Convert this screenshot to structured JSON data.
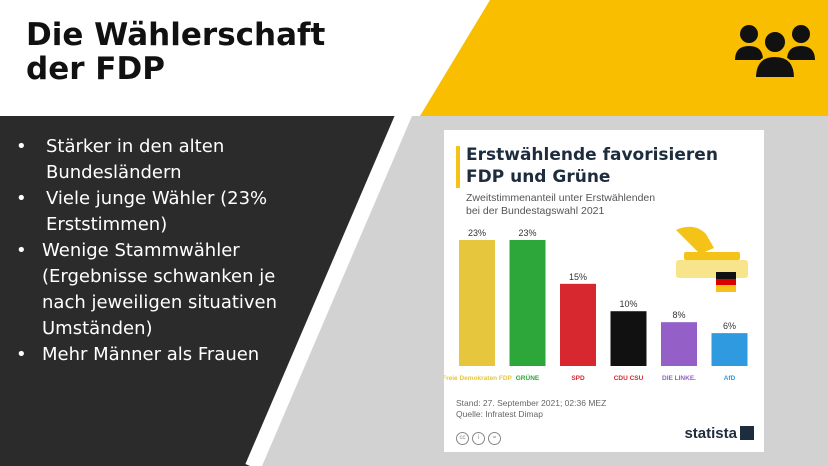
{
  "slide": {
    "title_line1": "Die Wählerschaft",
    "title_line2": "der FDP",
    "bullets": [
      "Stärker in den alten",
      "Bundesländern",
      "Viele junge Wähler (23%",
      "Erststimmen)",
      "Wenige Stammwähler",
      "(Ergebnisse schwanken je",
      "nach jeweiligen situativen",
      "Umständen)",
      "Mehr Männer als Frauen"
    ],
    "icon": "people-group-icon",
    "colors": {
      "yellow": "#f9be00",
      "dark": "#2b2b2b",
      "gray": "#d2d2d2"
    }
  },
  "card": {
    "title_line1": "Erstwählende favorisieren",
    "title_line2": "FDP und Grüne",
    "subtitle_line1": "Zweitstimmenanteil unter Erstwählenden",
    "subtitle_line2": "bei der Bundestagswahl 2021",
    "footer_line1": "Stand: 27. September 2021; 02:36 MEZ",
    "footer_line2": "Quelle: Infratest Dimap",
    "brand": "statista"
  },
  "chart_data": {
    "type": "bar",
    "categories": [
      "FDP",
      "Grüne",
      "SPD",
      "CDU/CSU",
      "Die Linke",
      "AfD"
    ],
    "values": [
      23,
      23,
      15,
      10,
      8,
      6
    ],
    "labels": [
      "23%",
      "23%",
      "15%",
      "10%",
      "8%",
      "6%"
    ],
    "colors": [
      "#e6c63c",
      "#2da63a",
      "#d7282f",
      "#111111",
      "#9460c8",
      "#2f9ae0"
    ],
    "logos": [
      "Freie Demokraten FDP",
      "GRÜNE",
      "SPD",
      "CDU CSU",
      "DIE LINKE.",
      "AfD"
    ],
    "title": "Erstwählende favorisieren FDP und Grüne",
    "ylim": [
      0,
      23
    ]
  }
}
